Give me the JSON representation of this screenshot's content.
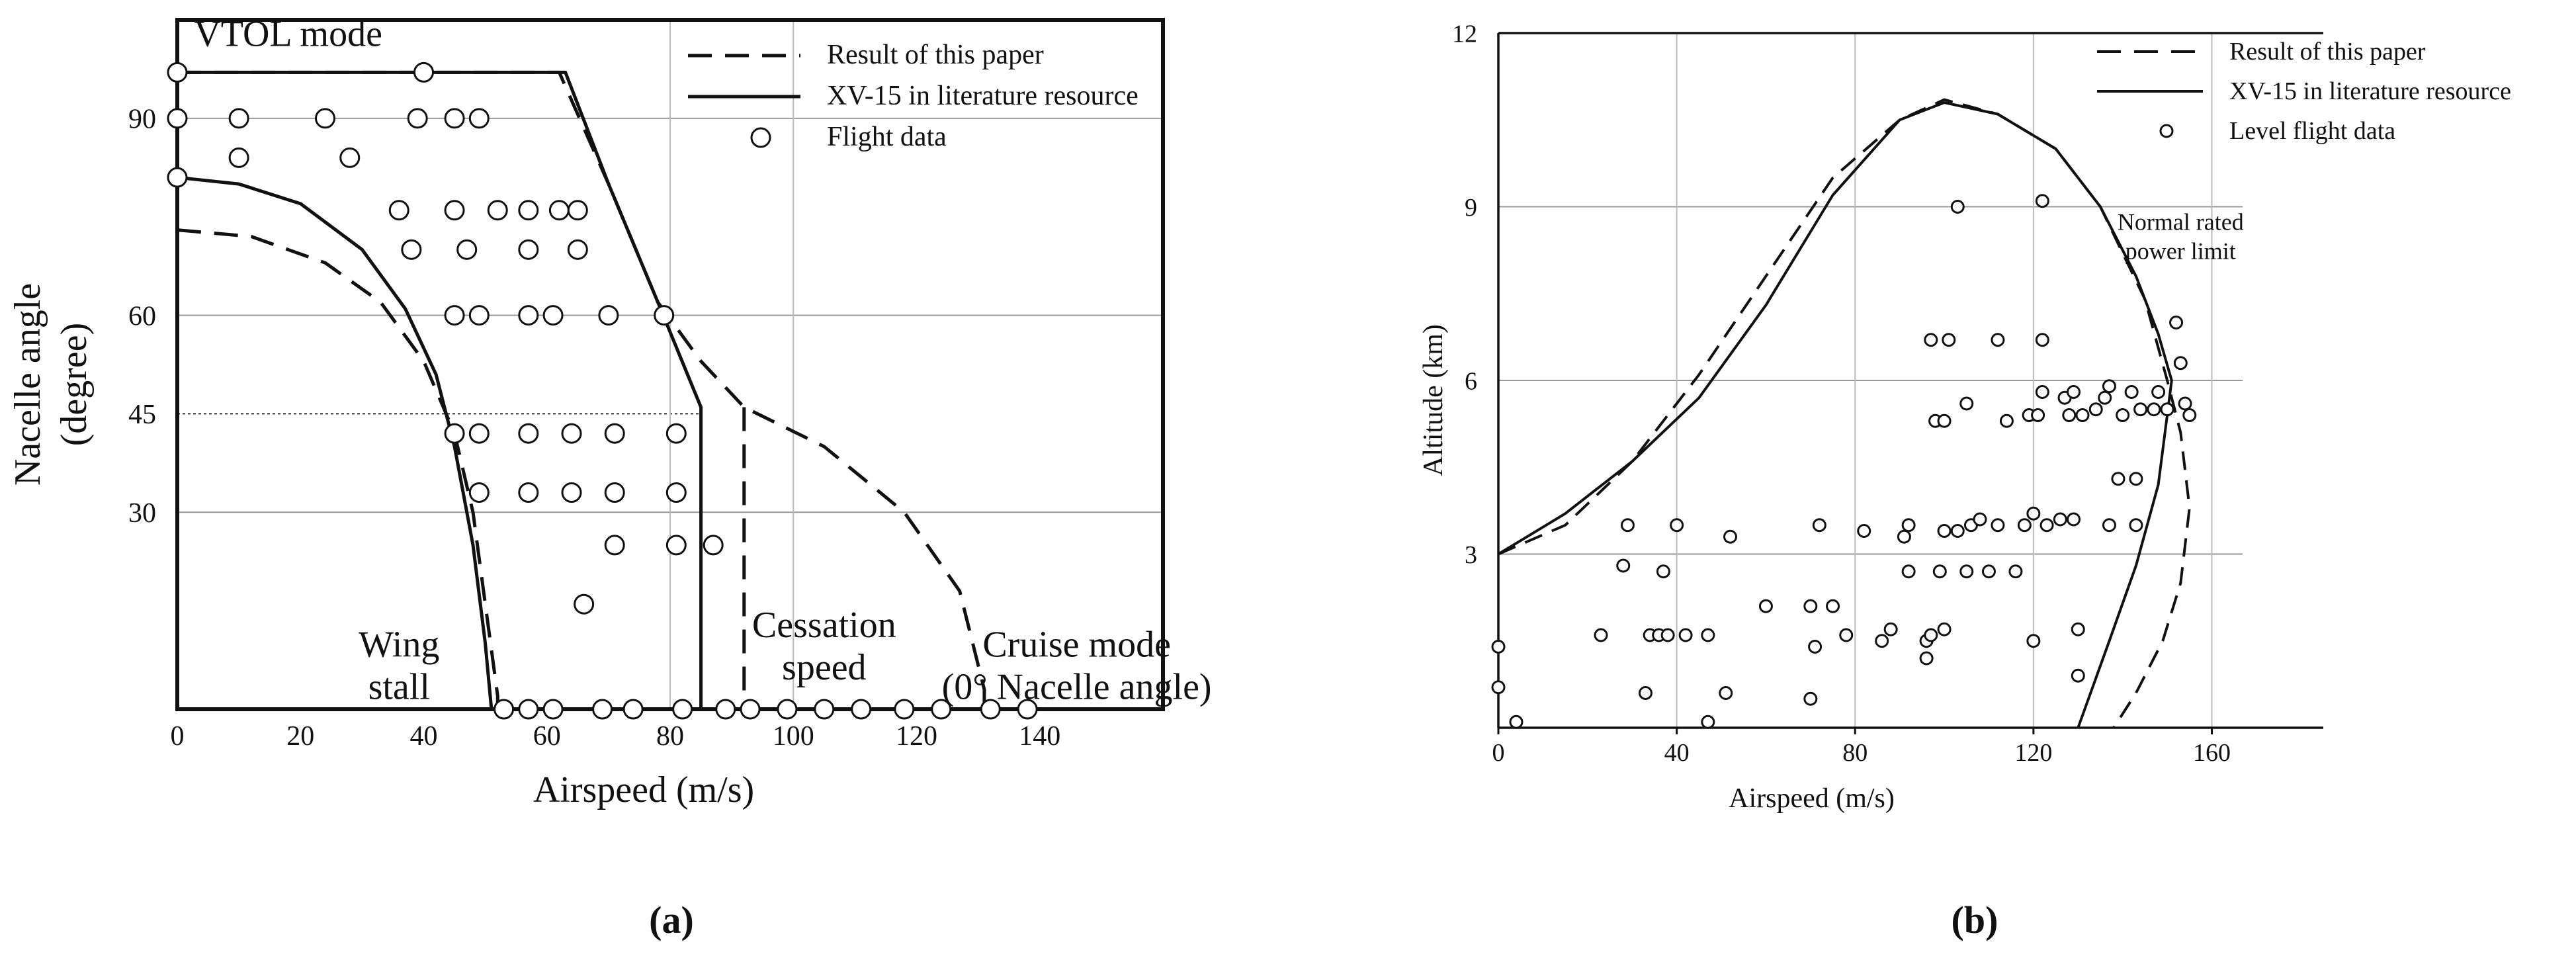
{
  "chart_data": [
    {
      "panel": "(a)",
      "type": "line",
      "xlabel": "Airspeed (m/s)",
      "ylabel": [
        "Nacelle angle",
        "(degree)"
      ],
      "xlim": [
        0,
        160
      ],
      "ylim": [
        0,
        105
      ],
      "x_ticks": [
        0,
        20,
        40,
        60,
        80,
        100,
        120,
        140
      ],
      "y_ticks": [
        30,
        45,
        60,
        90
      ],
      "grid": true,
      "legend_position": "top-right",
      "legend": [
        {
          "name": "Result of this paper",
          "style": "dashed"
        },
        {
          "name": "XV-15 in literature resource",
          "style": "solid"
        },
        {
          "name": "Flight data",
          "style": "circle"
        }
      ],
      "annotations": [
        {
          "text": [
            "VTOL mode"
          ],
          "x": 18,
          "y": 101
        },
        {
          "text": [
            "Wing",
            "stall"
          ],
          "x": 36,
          "y": 8
        },
        {
          "text": [
            "Cessation",
            "speed"
          ],
          "x": 105,
          "y": 11
        },
        {
          "text": [
            "Cruise mode",
            "(0° Nacelle angle)"
          ],
          "x": 146,
          "y": 8
        }
      ],
      "series": [
        {
          "name": "Result of this paper",
          "style": "dashed",
          "segments": [
            [
              [
                0,
                97
              ],
              [
                62,
                97
              ],
              [
                70,
                80
              ],
              [
                78,
                62
              ],
              [
                85,
                53
              ],
              [
                92,
                46
              ],
              [
                105,
                40
              ],
              [
                118,
                30
              ],
              [
                127,
                18
              ],
              [
                131,
                3
              ],
              [
                131,
                0
              ]
            ],
            [
              [
                0,
                73
              ],
              [
                12,
                72
              ],
              [
                24,
                68
              ],
              [
                33,
                62
              ],
              [
                40,
                53
              ],
              [
                45,
                42
              ],
              [
                48,
                30
              ],
              [
                50,
                16
              ],
              [
                52,
                2
              ],
              [
                52,
                0
              ]
            ],
            [
              [
                92,
                46
              ],
              [
                92,
                0
              ]
            ]
          ]
        },
        {
          "name": "XV-15 in literature resource",
          "style": "solid",
          "segments": [
            [
              [
                0,
                97
              ],
              [
                63,
                97
              ],
              [
                70,
                80
              ],
              [
                78,
                62
              ],
              [
                85,
                46
              ],
              [
                85,
                0
              ]
            ],
            [
              [
                0,
                81
              ],
              [
                10,
                80
              ],
              [
                20,
                77
              ],
              [
                30,
                70
              ],
              [
                37,
                61
              ],
              [
                42,
                51
              ],
              [
                45,
                40
              ],
              [
                48,
                25
              ],
              [
                50,
                10
              ],
              [
                51,
                0
              ]
            ]
          ]
        },
        {
          "name": "Flight data",
          "style": "circle",
          "points": [
            [
              0,
              90
            ],
            [
              0,
              81
            ],
            [
              0,
              97
            ],
            [
              10,
              90
            ],
            [
              10,
              84
            ],
            [
              24,
              90
            ],
            [
              28,
              84
            ],
            [
              40,
              97
            ],
            [
              39,
              90
            ],
            [
              45,
              90
            ],
            [
              49,
              90
            ],
            [
              36,
              76
            ],
            [
              38,
              70
            ],
            [
              45,
              76
            ],
            [
              47,
              70
            ],
            [
              52,
              76
            ],
            [
              57,
              70
            ],
            [
              57,
              76
            ],
            [
              62,
              76
            ],
            [
              65,
              76
            ],
            [
              65,
              70
            ],
            [
              45,
              60
            ],
            [
              49,
              60
            ],
            [
              57,
              60
            ],
            [
              61,
              60
            ],
            [
              70,
              60
            ],
            [
              79,
              60
            ],
            [
              45,
              42
            ],
            [
              49,
              42
            ],
            [
              57,
              42
            ],
            [
              64,
              42
            ],
            [
              71,
              42
            ],
            [
              81,
              42
            ],
            [
              49,
              33
            ],
            [
              57,
              33
            ],
            [
              64,
              33
            ],
            [
              71,
              33
            ],
            [
              81,
              33
            ],
            [
              71,
              25
            ],
            [
              81,
              25
            ],
            [
              87,
              25
            ],
            [
              66,
              16
            ],
            [
              53,
              0
            ],
            [
              57,
              0
            ],
            [
              61,
              0
            ],
            [
              69,
              0
            ],
            [
              74,
              0
            ],
            [
              82,
              0
            ],
            [
              89,
              0
            ],
            [
              93,
              0
            ],
            [
              99,
              0
            ],
            [
              105,
              0
            ],
            [
              111,
              0
            ],
            [
              118,
              0
            ],
            [
              124,
              0
            ],
            [
              132,
              0
            ],
            [
              138,
              0
            ]
          ]
        }
      ]
    },
    {
      "panel": "(b)",
      "type": "line",
      "xlabel": "Airspeed (m/s)",
      "ylabel": [
        "Altitude (km)"
      ],
      "xlim": [
        0,
        185
      ],
      "ylim": [
        0,
        12
      ],
      "x_ticks": [
        0,
        40,
        80,
        120,
        160
      ],
      "y_ticks": [
        3,
        6,
        9,
        12
      ],
      "grid": true,
      "legend_position": "top-right",
      "legend": [
        {
          "name": "Result of this paper",
          "style": "dashed"
        },
        {
          "name": "XV-15 in literature resource",
          "style": "solid"
        },
        {
          "name": "Level flight data",
          "style": "circle"
        }
      ],
      "annotations": [
        {
          "text": [
            "Normal rated",
            "power limit"
          ],
          "x": 153,
          "y": 8.6
        }
      ],
      "series": [
        {
          "name": "Result of this paper",
          "style": "dashed",
          "segments": [
            [
              [
                0,
                3.0
              ],
              [
                15,
                3.5
              ],
              [
                30,
                4.6
              ],
              [
                45,
                6.1
              ],
              [
                60,
                7.8
              ],
              [
                75,
                9.5
              ],
              [
                90,
                10.5
              ],
              [
                100,
                10.85
              ],
              [
                112,
                10.6
              ],
              [
                125,
                10
              ],
              [
                135,
                9
              ],
              [
                145,
                7.4
              ],
              [
                150,
                6.0
              ],
              [
                153,
                5.1
              ],
              [
                155,
                3.8
              ],
              [
                153,
                2.5
              ],
              [
                149,
                1.5
              ],
              [
                143,
                0.6
              ],
              [
                138,
                0
              ]
            ]
          ]
        },
        {
          "name": "XV-15 in literature resource",
          "style": "solid",
          "segments": [
            [
              [
                0,
                3.0
              ],
              [
                15,
                3.7
              ],
              [
                30,
                4.6
              ],
              [
                45,
                5.7
              ],
              [
                60,
                7.3
              ],
              [
                75,
                9.2
              ],
              [
                90,
                10.5
              ],
              [
                100,
                10.8
              ],
              [
                112,
                10.6
              ],
              [
                125,
                10
              ],
              [
                135,
                9
              ],
              [
                143,
                7.8
              ],
              [
                148,
                6.8
              ],
              [
                151,
                6.0
              ],
              [
                148,
                4.2
              ],
              [
                143,
                2.8
              ],
              [
                137,
                1.5
              ],
              [
                130,
                0
              ]
            ]
          ]
        },
        {
          "name": "Level flight data",
          "style": "circle",
          "points": [
            [
              0,
              1.4
            ],
            [
              0,
              0.7
            ],
            [
              4,
              0.1
            ],
            [
              23,
              1.6
            ],
            [
              28,
              2.8
            ],
            [
              29,
              3.5
            ],
            [
              33,
              0.6
            ],
            [
              34,
              1.6
            ],
            [
              36,
              1.6
            ],
            [
              37,
              2.7
            ],
            [
              38,
              1.6
            ],
            [
              40,
              3.5
            ],
            [
              42,
              1.6
            ],
            [
              47,
              1.6
            ],
            [
              47,
              0.1
            ],
            [
              51,
              0.6
            ],
            [
              52,
              3.3
            ],
            [
              60,
              2.1
            ],
            [
              70,
              2.1
            ],
            [
              70,
              0.5
            ],
            [
              71,
              1.4
            ],
            [
              72,
              3.5
            ],
            [
              75,
              2.1
            ],
            [
              78,
              1.6
            ],
            [
              82,
              3.4
            ],
            [
              86,
              1.5
            ],
            [
              88,
              1.7
            ],
            [
              91,
              3.3
            ],
            [
              92,
              2.7
            ],
            [
              92,
              3.5
            ],
            [
              96,
              1.5
            ],
            [
              96,
              1.2
            ],
            [
              97,
              1.6
            ],
            [
              98,
              5.3
            ],
            [
              99,
              2.7
            ],
            [
              100,
              5.3
            ],
            [
              100,
              3.4
            ],
            [
              100,
              1.7
            ],
            [
              97,
              6.7
            ],
            [
              101,
              6.7
            ],
            [
              103,
              9.0
            ],
            [
              103,
              3.4
            ],
            [
              105,
              2.7
            ],
            [
              105,
              5.6
            ],
            [
              106,
              3.5
            ],
            [
              108,
              3.6
            ],
            [
              110,
              2.7
            ],
            [
              112,
              3.5
            ],
            [
              112,
              6.7
            ],
            [
              114,
              5.3
            ],
            [
              116,
              2.7
            ],
            [
              118,
              3.5
            ],
            [
              119,
              5.4
            ],
            [
              120,
              3.7
            ],
            [
              120,
              1.5
            ],
            [
              121,
              5.4
            ],
            [
              122,
              6.7
            ],
            [
              122,
              5.8
            ],
            [
              122,
              9.1
            ],
            [
              123,
              3.5
            ],
            [
              126,
              3.6
            ],
            [
              127,
              5.7
            ],
            [
              128,
              5.4
            ],
            [
              129,
              3.6
            ],
            [
              129,
              5.8
            ],
            [
              130,
              1.7
            ],
            [
              130,
              0.9
            ],
            [
              131,
              5.4
            ],
            [
              134,
              5.5
            ],
            [
              136,
              5.7
            ],
            [
              137,
              5.9
            ],
            [
              137,
              3.5
            ],
            [
              139,
              4.3
            ],
            [
              140,
              5.4
            ],
            [
              142,
              5.8
            ],
            [
              143,
              3.5
            ],
            [
              143,
              4.3
            ],
            [
              144,
              5.5
            ],
            [
              147,
              5.5
            ],
            [
              148,
              5.8
            ],
            [
              150,
              5.5
            ],
            [
              152,
              7.0
            ],
            [
              153,
              6.3
            ],
            [
              154,
              5.6
            ],
            [
              155,
              5.4
            ]
          ]
        }
      ]
    }
  ]
}
